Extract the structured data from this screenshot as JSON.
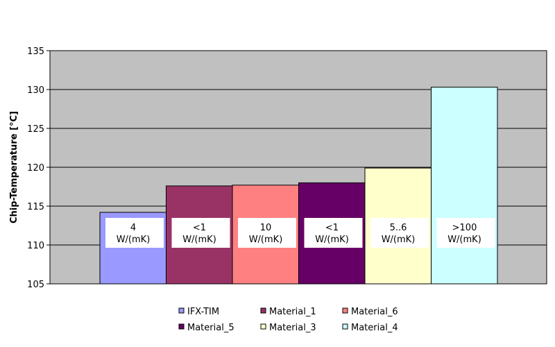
{
  "chart_data": {
    "type": "bar",
    "title": "",
    "xlabel": "",
    "ylabel": "Chip-Temperature [°C]",
    "ylim": [
      105,
      135
    ],
    "yticks": [
      105,
      110,
      115,
      120,
      125,
      130,
      135
    ],
    "grid": true,
    "legend_position": "bottom",
    "series": [
      {
        "name": "IFX-TIM",
        "value": 114.2,
        "color": "#9999ff",
        "label": [
          "4",
          "W/(mK)"
        ]
      },
      {
        "name": "Material_1",
        "value": 117.6,
        "color": "#993366",
        "label": [
          "<1",
          "W/(mK)"
        ]
      },
      {
        "name": "Material_6",
        "value": 117.7,
        "color": "#ff8080",
        "label": [
          "10",
          "W/(mK)"
        ]
      },
      {
        "name": "Material_5",
        "value": 118.0,
        "color": "#660066",
        "label": [
          "<1",
          "W/(mK)"
        ]
      },
      {
        "name": "Material_3",
        "value": 119.9,
        "color": "#ffffcc",
        "label": [
          "5..6",
          "W/(mK)"
        ]
      },
      {
        "name": "Material_4",
        "value": 130.3,
        "color": "#ccffff",
        "label": [
          ">100",
          "W/(mK)"
        ]
      }
    ],
    "colors": {
      "plot_background": "#c0c0c0",
      "border": "#000000"
    }
  }
}
